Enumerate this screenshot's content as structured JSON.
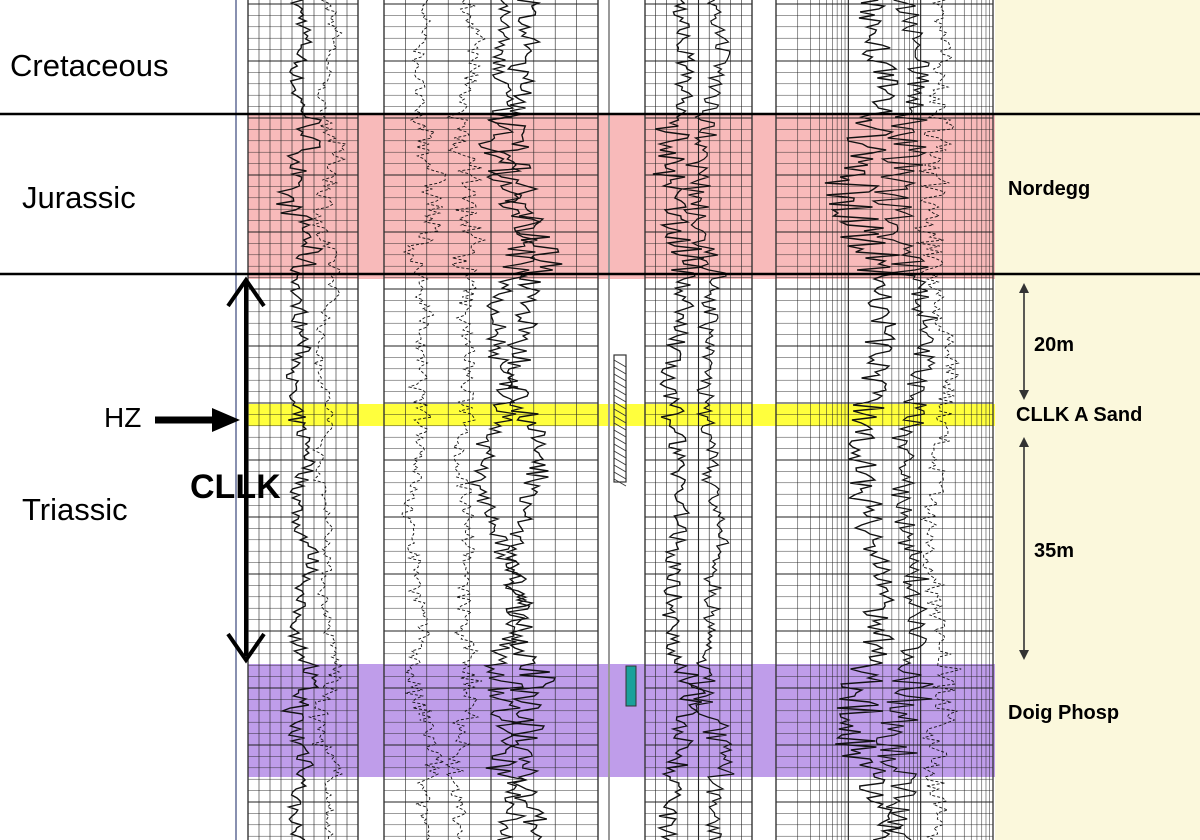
{
  "periods": {
    "cretaceous": "Cretaceous",
    "jurassic": "Jurassic",
    "triassic": "Triassic"
  },
  "formations": {
    "nordegg": "Nordegg",
    "cllk_a_sand": "CLLK A Sand",
    "doig_phosp": "Doig Phosp"
  },
  "intervals": {
    "upper_thickness": "20m",
    "lower_thickness": "35m",
    "cllk": "CLLK",
    "hz": "HZ"
  },
  "colors": {
    "nordegg_band": "#f7b3b3",
    "sand_band": "#ffff33",
    "doig_band": "#b48ce6",
    "right_panel": "#fbf8dc",
    "nordegg_text": "#ee7722",
    "doig_text": "#9933cc",
    "depth_tag": "#cc2222"
  },
  "icons": {
    "hz_arrow": "right-arrow-icon",
    "cllk_span_arrow": "double-vertical-arrow-icon",
    "thickness_arrow": "double-vertical-arrow-icon"
  }
}
